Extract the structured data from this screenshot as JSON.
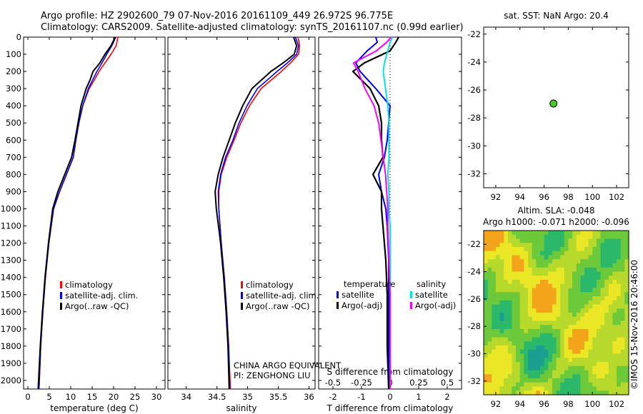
{
  "header": {
    "line1": "Argo profile: HZ 2902600_79 07-Nov-2016 20161109_449 26.972S 96.775E",
    "line2": "Climatology: CARS2009. Satellite-adjusted climatology: synTS_20161107.nc (0.99d earlier)"
  },
  "colors": {
    "climatology": "#ff0000",
    "satellite": "#0000ff",
    "argo": "#000000",
    "s_satellite": "#00e5e5",
    "s_argo": "#ff00ff",
    "float_marker": "#44cc22"
  },
  "depth_axis": {
    "range": [
      0,
      2050
    ],
    "ticks": [
      0,
      100,
      200,
      300,
      400,
      500,
      600,
      700,
      800,
      900,
      1000,
      1100,
      1200,
      1300,
      1400,
      1500,
      1600,
      1700,
      1800,
      1900,
      2000
    ]
  },
  "chart_data": [
    {
      "type": "line",
      "xlabel": "temperature (deg C)",
      "xlim": [
        -1,
        32
      ],
      "xticks": [
        0,
        5,
        10,
        15,
        20,
        25,
        30
      ],
      "ylim": [
        0,
        2050
      ],
      "legend": {
        "placement": "bottom-center",
        "entries": [
          "climatology",
          "satellite-adj. clim.",
          "Argo(..raw -QC)"
        ]
      },
      "depth": [
        0,
        50,
        100,
        150,
        200,
        250,
        300,
        400,
        500,
        600,
        700,
        800,
        900,
        1000,
        1200,
        1400,
        1600,
        1800,
        2050
      ],
      "series": [
        {
          "name": "climatology",
          "values": [
            21.0,
            20.6,
            19.4,
            18.0,
            16.6,
            15.5,
            14.3,
            12.8,
            11.9,
            11.2,
            10.6,
            9.0,
            7.4,
            6.0,
            4.9,
            4.1,
            3.5,
            3.0,
            2.6
          ]
        },
        {
          "name": "satellite-adj. clim.",
          "values": [
            20.5,
            19.6,
            18.4,
            17.3,
            16.1,
            15.1,
            14.1,
            12.8,
            11.9,
            11.2,
            10.6,
            9.0,
            7.4,
            6.0,
            4.9,
            4.1,
            3.5,
            3.0,
            2.6
          ]
        },
        {
          "name": "Argo(..raw -QC)",
          "values": [
            20.4,
            19.4,
            18.0,
            16.8,
            15.2,
            14.5,
            13.6,
            12.4,
            11.7,
            11.0,
            10.2,
            8.6,
            7.0,
            5.8,
            4.8,
            4.0,
            3.4,
            2.9,
            2.4
          ]
        }
      ]
    },
    {
      "type": "line",
      "xlabel": "salinity",
      "xlim": [
        33.7,
        36.1
      ],
      "xticks": [
        34,
        34.5,
        35,
        35.5,
        36
      ],
      "ylim": [
        0,
        2050
      ],
      "legend": {
        "placement": "bottom-center",
        "entries": [
          "climatology",
          "satellite-adj. clim.",
          "Argo(..raw -QC)"
        ]
      },
      "annotation": [
        "CHINA ARGO EQUIVALENT",
        "PI: ZENGHONG LIU"
      ],
      "depth": [
        0,
        50,
        100,
        150,
        200,
        300,
        400,
        500,
        600,
        700,
        800,
        900,
        1000,
        1200,
        1400,
        1600,
        1800,
        2050
      ],
      "series": [
        {
          "name": "climatology",
          "values": [
            35.82,
            35.85,
            35.83,
            35.7,
            35.55,
            35.22,
            35.03,
            34.89,
            34.78,
            34.66,
            34.57,
            34.53,
            34.53,
            34.57,
            34.62,
            34.66,
            34.69,
            34.72
          ]
        },
        {
          "name": "satellite-adj. clim.",
          "values": [
            35.78,
            35.83,
            35.8,
            35.65,
            35.48,
            35.16,
            34.99,
            34.86,
            34.76,
            34.64,
            34.56,
            34.52,
            34.53,
            34.57,
            34.62,
            34.66,
            34.69,
            34.71
          ]
        },
        {
          "name": "Argo(..raw -QC)",
          "values": [
            35.75,
            35.8,
            35.76,
            35.58,
            35.38,
            35.07,
            34.92,
            34.8,
            34.7,
            34.6,
            34.52,
            34.47,
            34.49,
            34.56,
            34.61,
            34.65,
            34.68,
            34.7
          ]
        }
      ]
    },
    {
      "type": "line",
      "xlabel": "T difference from climatology",
      "x2label": "S difference from climatology",
      "xlim": [
        -2.5,
        2.5
      ],
      "xticks": [
        -2,
        -1,
        0,
        1,
        2
      ],
      "x2lim": [
        -0.625,
        0.625
      ],
      "x2ticks": [
        -0.5,
        -0.25,
        0,
        0.25,
        0.5
      ],
      "ylim": [
        0,
        2050
      ],
      "legend": {
        "placement": "bottom-center",
        "temperature_title": "temperature",
        "salinity_title": "salinity",
        "temperature_entries": [
          "satellite",
          "Argo(-adj)"
        ],
        "salinity_entries": [
          "satellite",
          "Argo(-adj)"
        ]
      },
      "depth": [
        0,
        30,
        80,
        150,
        200,
        300,
        400,
        500,
        600,
        700,
        800,
        900,
        1000,
        1100,
        1300,
        1500,
        1800,
        2050
      ],
      "series": [
        {
          "name": "satellite",
          "variable": "T",
          "values": [
            -0.5,
            -0.45,
            -0.8,
            -1.2,
            -1.05,
            -0.5,
            0.0,
            -0.05,
            -0.1,
            -0.2,
            -0.4,
            -0.3,
            -0.15,
            -0.1,
            -0.05,
            -0.05,
            -0.05,
            -0.05
          ]
        },
        {
          "name": "Argo(-adj)",
          "variable": "T",
          "values": [
            0.3,
            0.2,
            0.0,
            -0.9,
            -1.3,
            -0.7,
            -0.4,
            -0.3,
            -0.3,
            -0.25,
            -0.6,
            -0.3,
            -0.3,
            -0.25,
            -0.15,
            -0.1,
            -0.1,
            -0.05
          ]
        },
        {
          "name": "satellite",
          "variable": "S",
          "values": [
            0.02,
            0.0,
            -0.02,
            -0.05,
            -0.06,
            -0.04,
            -0.02,
            -0.01,
            -0.01,
            -0.01,
            -0.02,
            -0.01,
            -0.01,
            0.0,
            0.0,
            0.0,
            0.0,
            0.0
          ]
        },
        {
          "name": "Argo(-adj)",
          "variable": "S",
          "values": [
            0.01,
            -0.03,
            -0.12,
            -0.32,
            -0.28,
            -0.22,
            -0.14,
            -0.1,
            -0.08,
            -0.06,
            -0.04,
            -0.03,
            -0.02,
            -0.02,
            -0.01,
            0.0,
            0.0,
            0.0
          ]
        }
      ]
    },
    {
      "type": "scatter",
      "title": "sat. SST: NaN Argo: 20.4",
      "xlim": [
        91,
        103
      ],
      "xticks": [
        92,
        94,
        96,
        98,
        100,
        102
      ],
      "ylim": [
        -33,
        -21.5
      ],
      "yticks": [
        -22,
        -24,
        -26,
        -28,
        -30,
        -32
      ],
      "x": [
        96.775
      ],
      "y": [
        -26.972
      ]
    },
    {
      "type": "heatmap",
      "title_lines": [
        "Altim. SLA: -0.048",
        "Argo h1000: -0.071 h2000: -0.096"
      ],
      "xlim": [
        91,
        103
      ],
      "xticks": [
        92,
        94,
        96,
        98,
        100,
        102
      ],
      "ylim": [
        -33,
        -21
      ],
      "yticks": [
        -22,
        -24,
        -26,
        -28,
        -30,
        -32
      ],
      "colors": [
        "#1a9e90",
        "#2bb86a",
        "#6cc93a",
        "#b6d92c",
        "#ebe626",
        "#f4a41a"
      ]
    }
  ],
  "side_label": "©IMOS 15-Nov-2016 20:46:00"
}
